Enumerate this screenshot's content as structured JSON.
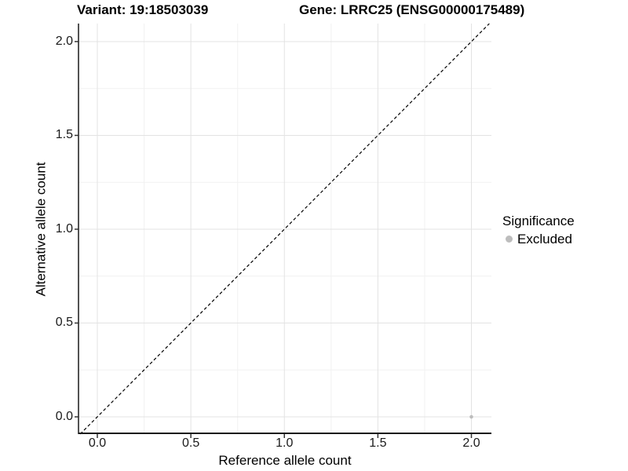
{
  "titles": {
    "variant": "Variant: 19:18503039",
    "gene": "Gene: LRRC25 (ENSG00000175489)"
  },
  "axes": {
    "x_label": "Reference allele count",
    "y_label": "Alternative allele count"
  },
  "legend": {
    "title": "Significance",
    "items": [
      {
        "label": "Excluded",
        "color": "#bdbdbd"
      }
    ]
  },
  "chart_data": {
    "type": "scatter",
    "title": "Variant: 19:18503039  /  Gene: LRRC25 (ENSG00000175489)",
    "xlabel": "Reference allele count",
    "ylabel": "Alternative allele count",
    "xlim": [
      -0.1007,
      2.107
    ],
    "ylim": [
      -0.092,
      2.096
    ],
    "x_ticks": [
      0.0,
      0.5,
      1.0,
      1.5,
      2.0
    ],
    "y_ticks": [
      0.0,
      0.5,
      1.0,
      1.5,
      2.0
    ],
    "x_tick_labels": [
      "0.0",
      "0.5",
      "1.0",
      "1.5",
      "2.0"
    ],
    "y_tick_labels": [
      "0.0",
      "0.5",
      "1.0",
      "1.5",
      "2.0"
    ],
    "minor_tick_step": 0.25,
    "grid": true,
    "legend_position": "right",
    "series": [
      {
        "name": "Excluded",
        "color": "#bdbdbd",
        "points": [
          {
            "x": 2.0,
            "y": 0.0
          }
        ]
      }
    ],
    "reference_line": {
      "type": "identity",
      "equation": "y = x",
      "style": "dashed",
      "color": "#000000"
    },
    "colors": {
      "background": "#ffffff",
      "grid_major": "#e3e3e3",
      "grid_minor": "#f1f1f1",
      "axis_line": "#1a1a1a",
      "tick_mark": "#333333",
      "tick_text": "#1a1a1a",
      "text": "#000000"
    }
  }
}
